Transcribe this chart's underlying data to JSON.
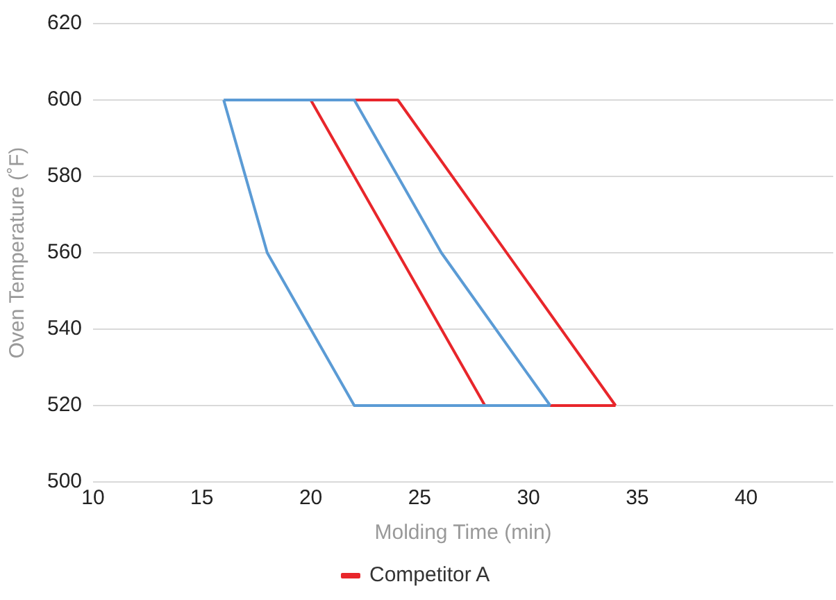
{
  "chart_data": {
    "type": "line",
    "xlabel": "Molding Time (min)",
    "ylabel": "Oven Temperature (˚F)",
    "series": [
      {
        "color": "#5b9bd5",
        "x": [
          16,
          22,
          26,
          31
        ],
        "values": [
          600,
          600,
          560,
          520
        ]
      },
      {
        "color": "#5b9bd5",
        "x": [
          16,
          18,
          22,
          31
        ],
        "values": [
          600,
          560,
          520,
          520
        ]
      },
      {
        "name": "Competitor A",
        "color": "#e8262b",
        "x": [
          20,
          24,
          34
        ],
        "values": [
          600,
          600,
          520
        ]
      },
      {
        "color": "#e8262b",
        "x": [
          20,
          28,
          34
        ],
        "values": [
          600,
          520,
          520
        ]
      }
    ],
    "xlim": [
      10,
      44
    ],
    "xticks": [
      10,
      15,
      20,
      25,
      30,
      35,
      40
    ],
    "ylim": [
      500,
      620
    ],
    "yticks": [
      500,
      520,
      540,
      560,
      580,
      600,
      620
    ],
    "grid": "y",
    "legend": "bottom",
    "marker": "none",
    "line_style": "solid"
  }
}
